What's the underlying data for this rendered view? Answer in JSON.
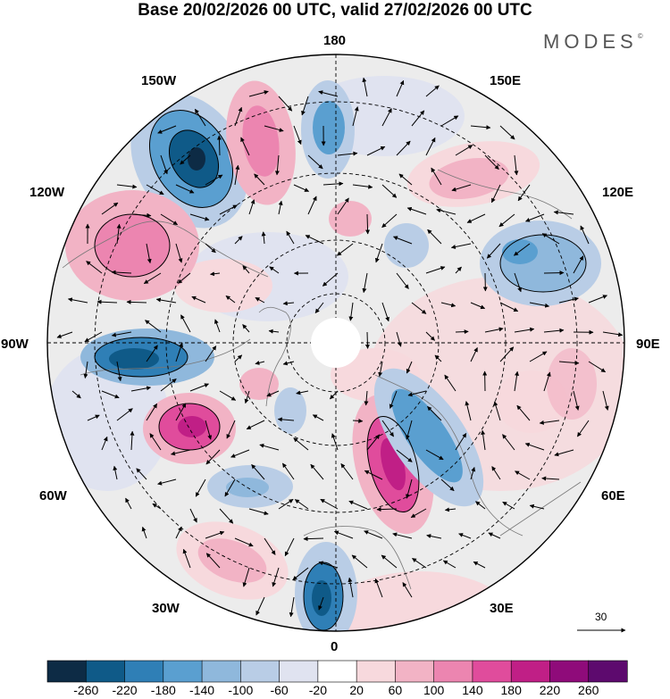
{
  "title": "Base 20/02/2026 00 UTC, valid 27/02/2026 00 UTC",
  "logo": "MODES",
  "logo_mark": "©",
  "longitude_labels": {
    "top": "180",
    "bottom": "0",
    "left": "90W",
    "right": "90E",
    "upper_left_1": "150W",
    "upper_left_2": "120W",
    "upper_right_1": "150E",
    "upper_right_2": "120E",
    "lower_left_1": "60W",
    "lower_left_2": "30W",
    "lower_right_1": "60E",
    "lower_right_2": "30E"
  },
  "vector_scale_label": "30",
  "colorbar": {
    "ticks": [
      "-260",
      "-220",
      "-180",
      "-140",
      "-100",
      "-60",
      "-20",
      "20",
      "60",
      "100",
      "140",
      "180",
      "220",
      "260"
    ],
    "colors": [
      "#0d2b45",
      "#0f5a88",
      "#2f7fb6",
      "#5a9fd0",
      "#8fb8dc",
      "#b9cde6",
      "#e0e3f0",
      "#ffffff",
      "#f7d9dd",
      "#f2b3c5",
      "#ec85b0",
      "#e04c9c",
      "#c01f86",
      "#8f0b7a",
      "#5d0a6e"
    ]
  },
  "colors": {
    "ocean": "#ececec",
    "land_line": "#777777"
  }
}
